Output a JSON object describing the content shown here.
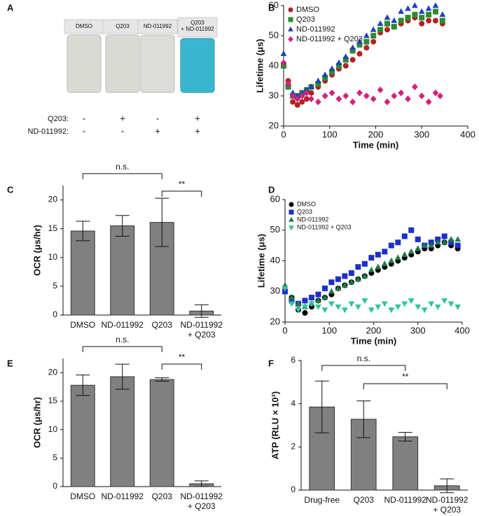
{
  "panel_a": {
    "panel": "A",
    "vials": [
      "DMSO",
      "Q203",
      "ND-011992",
      "Q203\n+ ND-011992"
    ],
    "rows": [
      {
        "label": "Q203:",
        "signs": [
          "-",
          "+",
          "-",
          "+"
        ]
      },
      {
        "label": "ND-011992:",
        "signs": [
          "-",
          "-",
          "+",
          "+"
        ]
      }
    ]
  },
  "chart_data": [
    {
      "type": "scatter",
      "panel": "B",
      "xlabel": "Time (min)",
      "ylabel": "Lifetime (μs)",
      "xlim": [
        0,
        400
      ],
      "ylim": [
        20,
        60
      ],
      "xticks": [
        0,
        100,
        200,
        300,
        400
      ],
      "yticks": [
        20,
        30,
        40,
        50,
        60
      ],
      "series": [
        {
          "name": "DMSO",
          "color": "#b22222",
          "marker": "circle",
          "x": [
            0,
            10,
            20,
            30,
            40,
            50,
            60,
            75,
            90,
            105,
            120,
            135,
            150,
            165,
            180,
            195,
            210,
            225,
            240,
            255,
            270,
            285,
            300,
            315,
            330,
            345
          ],
          "values": [
            40,
            35,
            28,
            27,
            28,
            29,
            31,
            33,
            35,
            37,
            39,
            40,
            42,
            44,
            46,
            48,
            51,
            52,
            53,
            54,
            55,
            56,
            54,
            55,
            55,
            54
          ]
        },
        {
          "name": "Q203",
          "color": "#2e8b2e",
          "marker": "square",
          "x": [
            0,
            10,
            20,
            30,
            40,
            50,
            60,
            75,
            90,
            105,
            120,
            135,
            150,
            165,
            180,
            195,
            210,
            225,
            240,
            255,
            270,
            285,
            300,
            315,
            330,
            345
          ],
          "values": [
            40,
            33,
            30,
            30,
            31,
            32,
            33,
            34,
            36,
            38,
            40,
            42,
            45,
            47,
            48,
            50,
            52,
            54,
            53,
            55,
            56,
            57,
            56,
            57,
            58,
            55
          ]
        },
        {
          "name": "ND-011992",
          "color": "#2040c0",
          "marker": "triangle",
          "x": [
            0,
            10,
            20,
            30,
            40,
            50,
            60,
            75,
            90,
            105,
            120,
            135,
            150,
            165,
            180,
            195,
            210,
            225,
            240,
            255,
            270,
            285,
            300,
            315,
            330,
            345
          ],
          "values": [
            44,
            34,
            31,
            30,
            31,
            32,
            33,
            35,
            37,
            39,
            41,
            43,
            46,
            48,
            50,
            52,
            54,
            56,
            55,
            58,
            59,
            60,
            58,
            59,
            60,
            57
          ]
        },
        {
          "name": "ND-011992 + Q203",
          "color": "#d0237a",
          "marker": "diamond",
          "x": [
            0,
            10,
            20,
            30,
            40,
            50,
            60,
            75,
            90,
            105,
            120,
            135,
            150,
            165,
            180,
            195,
            210,
            225,
            240,
            255,
            270,
            285,
            300,
            315,
            330,
            340
          ],
          "values": [
            41,
            34,
            30,
            29,
            30,
            31,
            29,
            28,
            30,
            31,
            29,
            30,
            28,
            31,
            30,
            29,
            32,
            28,
            30,
            31,
            29,
            33,
            30,
            28,
            31,
            30
          ]
        }
      ]
    },
    {
      "type": "bar",
      "panel": "C",
      "ylabel": "OCR (μs/hr)",
      "categories": [
        "DMSO",
        "ND-011992",
        "Q203",
        "ND-011992\n+ Q203"
      ],
      "values": [
        14.6,
        15.5,
        16.1,
        0.7
      ],
      "errors": [
        1.7,
        1.8,
        4.2,
        1.1
      ],
      "color": "#808080",
      "ylim": [
        0,
        22.5
      ],
      "yticks": [
        0,
        5,
        10,
        15,
        20
      ],
      "annotations": [
        "n.s.",
        "**"
      ]
    },
    {
      "type": "scatter",
      "panel": "D",
      "xlabel": "Time (min)",
      "ylabel": "Lifetime (μs)",
      "xlim": [
        0,
        400
      ],
      "ylim": [
        20,
        60
      ],
      "xticks": [
        0,
        100,
        200,
        300,
        400
      ],
      "yticks": [
        20,
        30,
        40,
        50,
        60
      ],
      "series": [
        {
          "name": "DMSO",
          "color": "#000000",
          "marker": "circle",
          "x": [
            0,
            15,
            30,
            45,
            60,
            75,
            90,
            105,
            120,
            135,
            150,
            165,
            180,
            195,
            210,
            225,
            240,
            255,
            270,
            285,
            300,
            315,
            330,
            345,
            360,
            375,
            390
          ],
          "values": [
            30,
            28,
            24,
            23,
            25,
            27,
            28,
            29,
            31,
            32,
            33,
            34,
            35,
            36,
            37,
            38,
            39,
            40,
            41,
            42,
            43,
            44,
            44,
            45,
            46,
            45,
            44
          ]
        },
        {
          "name": "Q203",
          "color": "#1c2fc8",
          "marker": "square",
          "x": [
            0,
            15,
            30,
            45,
            60,
            75,
            90,
            105,
            120,
            135,
            150,
            165,
            180,
            195,
            210,
            225,
            240,
            255,
            270,
            285,
            300,
            315,
            330,
            345,
            360,
            375,
            390
          ],
          "values": [
            30,
            27,
            26,
            27,
            28,
            29,
            31,
            33,
            34,
            35,
            36,
            38,
            39,
            41,
            42,
            43,
            45,
            46,
            48,
            50,
            47,
            45,
            46,
            47,
            48,
            46,
            45
          ]
        },
        {
          "name": "ND-011992",
          "color": "#1f7a4a",
          "marker": "triangle",
          "x": [
            0,
            15,
            30,
            45,
            60,
            75,
            90,
            105,
            120,
            135,
            150,
            165,
            180,
            195,
            210,
            225,
            240,
            255,
            270,
            285,
            300,
            315,
            330,
            345,
            360,
            375,
            390
          ],
          "values": [
            32,
            28,
            26,
            25,
            26,
            27,
            28,
            30,
            31,
            32,
            33,
            34,
            35,
            37,
            38,
            39,
            40,
            41,
            42,
            43,
            44,
            45,
            45,
            46,
            46,
            47,
            47
          ]
        },
        {
          "name": "ND-011992 + Q203",
          "color": "#2ec49a",
          "marker": "triangle-down",
          "x": [
            0,
            15,
            30,
            45,
            60,
            75,
            90,
            105,
            120,
            135,
            150,
            165,
            180,
            195,
            210,
            225,
            240,
            255,
            270,
            285,
            300,
            315,
            330,
            345,
            360,
            375,
            390
          ],
          "values": [
            31,
            26,
            24,
            25,
            26,
            25,
            24,
            26,
            25,
            24,
            26,
            25,
            27,
            24,
            25,
            26,
            24,
            25,
            26,
            27,
            25,
            24,
            26,
            25,
            27,
            26,
            25
          ]
        }
      ]
    },
    {
      "type": "bar",
      "panel": "E",
      "ylabel": "OCR (μs/hr)",
      "categories": [
        "DMSO",
        "ND-011992",
        "Q203",
        "ND-011992\n+ Q203"
      ],
      "values": [
        17.8,
        19.3,
        18.8,
        0.5
      ],
      "errors": [
        1.8,
        2.2,
        0.3,
        0.5
      ],
      "color": "#808080",
      "ylim": [
        0,
        22.5
      ],
      "yticks": [
        0,
        5,
        10,
        15,
        20
      ],
      "annotations": [
        "n.s.",
        "**"
      ]
    },
    {
      "type": "bar",
      "panel": "F",
      "ylabel": "ATP (RLU × 10³)",
      "categories": [
        "Drug-free",
        "Q203",
        "ND-011992",
        "ND-011992\n+ Q203"
      ],
      "values": [
        3.85,
        3.28,
        2.47,
        0.2
      ],
      "errors": [
        1.2,
        0.85,
        0.2,
        0.32
      ],
      "color": "#808080",
      "ylim": [
        0,
        6
      ],
      "yticks": [
        0,
        2,
        4,
        6
      ],
      "annotations": [
        "n.s.",
        "**"
      ]
    }
  ]
}
